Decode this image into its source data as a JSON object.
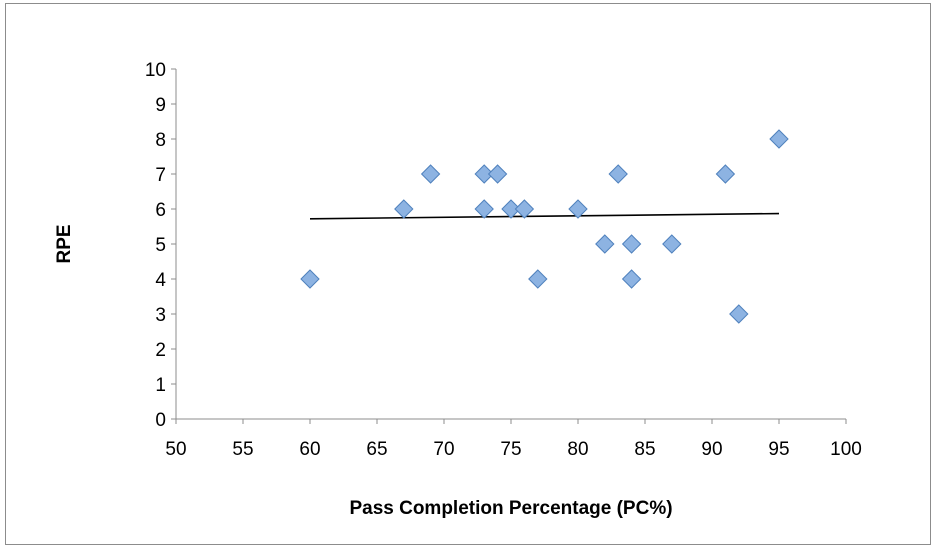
{
  "chart_data": {
    "type": "scatter",
    "title": "",
    "xlabel": "Pass Completion Percentage (PC%)",
    "ylabel": "RPE",
    "xlim": [
      50,
      100
    ],
    "ylim": [
      0,
      10
    ],
    "xticks": [
      "50",
      "55",
      "60",
      "65",
      "70",
      "75",
      "80",
      "85",
      "90",
      "95",
      "100"
    ],
    "yticks": [
      "0",
      "1",
      "2",
      "3",
      "4",
      "5",
      "6",
      "7",
      "8",
      "9",
      "10"
    ],
    "grid": false,
    "legend": "none",
    "marker": "diamond",
    "marker_color": "#8db3e2",
    "marker_edge_color": "#4f81bd",
    "series": [
      {
        "points": [
          {
            "x": 60,
            "y": 4
          },
          {
            "x": 67,
            "y": 6
          },
          {
            "x": 69,
            "y": 7
          },
          {
            "x": 73,
            "y": 7
          },
          {
            "x": 73,
            "y": 6
          },
          {
            "x": 74,
            "y": 7
          },
          {
            "x": 75,
            "y": 6
          },
          {
            "x": 76,
            "y": 6
          },
          {
            "x": 77,
            "y": 4
          },
          {
            "x": 80,
            "y": 6
          },
          {
            "x": 82,
            "y": 5
          },
          {
            "x": 83,
            "y": 7
          },
          {
            "x": 84,
            "y": 5
          },
          {
            "x": 84,
            "y": 4
          },
          {
            "x": 87,
            "y": 5
          },
          {
            "x": 91,
            "y": 7
          },
          {
            "x": 92,
            "y": 3
          },
          {
            "x": 95,
            "y": 8
          }
        ]
      }
    ],
    "trendline": {
      "type": "linear",
      "color": "#000000",
      "x": [
        60,
        95
      ],
      "y": [
        5.72,
        5.87
      ]
    }
  }
}
